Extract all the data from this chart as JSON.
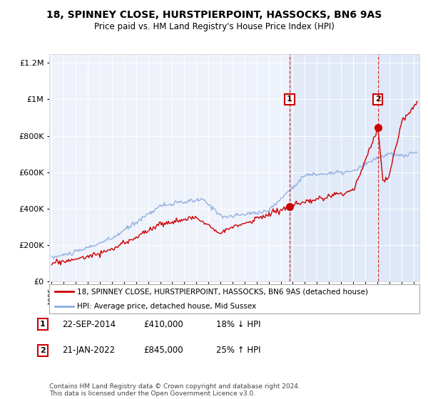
{
  "title": "18, SPINNEY CLOSE, HURSTPIERPOINT, HASSOCKS, BN6 9AS",
  "subtitle": "Price paid vs. HM Land Registry's House Price Index (HPI)",
  "legend_line1": "18, SPINNEY CLOSE, HURSTPIERPOINT, HASSOCKS, BN6 9AS (detached house)",
  "legend_line2": "HPI: Average price, detached house, Mid Sussex",
  "transaction1_date": "22-SEP-2014",
  "transaction1_price": 410000,
  "transaction1_pct": "18% ↓ HPI",
  "transaction1_year": 2014.73,
  "transaction2_date": "21-JAN-2022",
  "transaction2_price": 845000,
  "transaction2_pct": "25% ↑ HPI",
  "transaction2_year": 2022.06,
  "footer": "Contains HM Land Registry data © Crown copyright and database right 2024.\nThis data is licensed under the Open Government Licence v3.0.",
  "red_color": "#cc0000",
  "blue_color": "#88aadd",
  "plot_bg_color": "#eef2fb",
  "shade_color": "#dde8f8",
  "ylim_max": 1250000,
  "xlim_start": 1994.8,
  "xlim_end": 2025.5
}
